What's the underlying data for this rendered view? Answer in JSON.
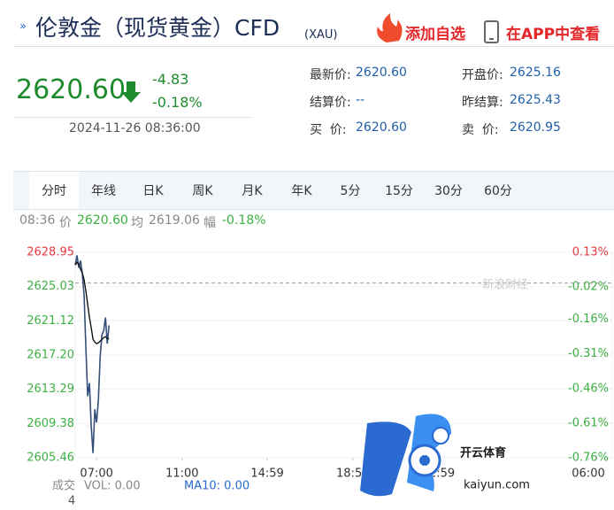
{
  "header": {
    "title": "伦敦金（现货黄金）CFD",
    "code": "(XAU)",
    "add_watchlist": "添加自选",
    "open_app": "在APP中查看"
  },
  "quote": {
    "price": "2620.60",
    "change": "-4.83",
    "change_pct": "-0.18%",
    "time": "2024-11-26 08:36:00",
    "fields": [
      {
        "label": "最新价:",
        "value": "2620.60"
      },
      {
        "label": "开盘价:",
        "value": "2625.16"
      },
      {
        "label": "结算价:",
        "value": "--"
      },
      {
        "label": "昨结算:",
        "value": "2625.43"
      },
      {
        "label": "买  价:",
        "value": "2620.60"
      },
      {
        "label": "卖  价:",
        "value": "2620.95"
      }
    ]
  },
  "tabs": [
    "分时",
    "年线",
    "日K",
    "周K",
    "月K",
    "年K",
    "5分",
    "15分",
    "30分",
    "60分"
  ],
  "status": {
    "time": "08:36",
    "price_label": "价",
    "price": "2620.60",
    "avg_label": "均",
    "avg": "2619.06",
    "range_label": "幅",
    "range": "-0.18%"
  },
  "chart_data": {
    "type": "line",
    "x": [
      "06:00",
      "06:05",
      "06:10",
      "06:15",
      "06:20",
      "06:25",
      "06:30",
      "06:35",
      "06:40",
      "06:45",
      "06:50",
      "06:55",
      "07:00",
      "07:05",
      "07:10",
      "07:15",
      "07:20",
      "07:25",
      "07:30",
      "07:35"
    ],
    "series": [
      {
        "color": "#34507a",
        "values": [
          2627.5,
          2628.6,
          2627.2,
          2628.0,
          2626.5,
          2624.0,
          2618.0,
          2612.5,
          2614.0,
          2609.0,
          2606.0,
          2611.0,
          2609.5,
          2612.0,
          2617.0,
          2619.5,
          2620.0,
          2621.5,
          2618.5,
          2620.6
        ]
      },
      {
        "color": "#111111",
        "values": [
          2627.5,
          2627.8,
          2627.6,
          2627.0,
          2626.6,
          2625.8,
          2624.5,
          2623.0,
          2621.5,
          2620.3,
          2619.0,
          2618.7,
          2618.5,
          2618.6,
          2618.8,
          2619.0,
          2619.2,
          2619.3,
          2619.1,
          2619.06
        ]
      }
    ],
    "xlim": [
      "06:00",
      "06:00"
    ],
    "xticks": [
      "07:00",
      "11:00",
      "14:59",
      "18:59",
      "22:59",
      "06:00"
    ],
    "ylim": [
      2605.46,
      2628.95
    ],
    "yticks": [
      2628.95,
      2625.03,
      2621.12,
      {
        "value": 2617.2,
        "label": "2617.20"
      },
      2613.29,
      2609.38,
      2605.46
    ],
    "y2lim": [
      -0.76,
      0.13
    ],
    "y2ticks": [
      {
        "value": 0.13,
        "label": "0.13%"
      },
      {
        "value": -0.02,
        "label": "-0.02%"
      },
      {
        "value": -0.16,
        "label": "-0.16%"
      },
      {
        "value": -0.31,
        "label": "-0.31%"
      },
      {
        "value": -0.46,
        "label": "-0.46%"
      },
      {
        "value": -0.61,
        "label": "-0.61%"
      },
      {
        "value": -0.76,
        "label": "-0.76%"
      }
    ],
    "baseline": 2625.43,
    "up_color": "#e4393c",
    "down_color": "#3cb043"
  },
  "volume": {
    "label": "成交",
    "vol": "VOL: 0.00",
    "ma10": "MA10: 0.00",
    "axis_value": "4"
  },
  "watermark": {
    "source": "新浪财经",
    "name": "开云体育",
    "site": "kaiyun.com"
  }
}
